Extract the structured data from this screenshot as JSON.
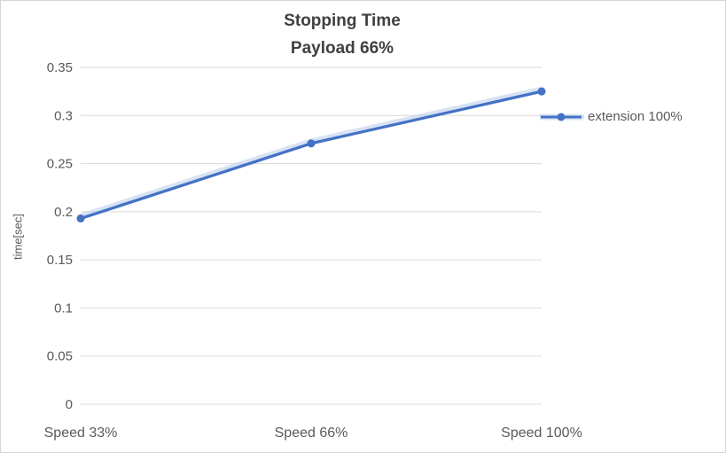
{
  "chart_data": {
    "type": "line",
    "title": "Stopping Time",
    "subtitle": "Payload 66%",
    "ylabel": "time[sec]",
    "xlabel": "",
    "categories": [
      "Speed 33%",
      "Speed 66%",
      "Speed 100%"
    ],
    "series": [
      {
        "name": "extension 100%",
        "values": [
          0.193,
          0.271,
          0.325
        ]
      }
    ],
    "ylim": [
      0,
      0.35
    ],
    "ytick_step": 0.05,
    "ytick_labels": [
      "0",
      "0.05",
      "0.1",
      "0.15",
      "0.2",
      "0.25",
      "0.3",
      "0.35"
    ],
    "grid": true,
    "legend_position": "right",
    "colors": {
      "series": "#4472C4",
      "series_glow": "#BCD0EC",
      "grid": "#D9D9D9",
      "text": "#595959",
      "title": "#404040"
    }
  }
}
